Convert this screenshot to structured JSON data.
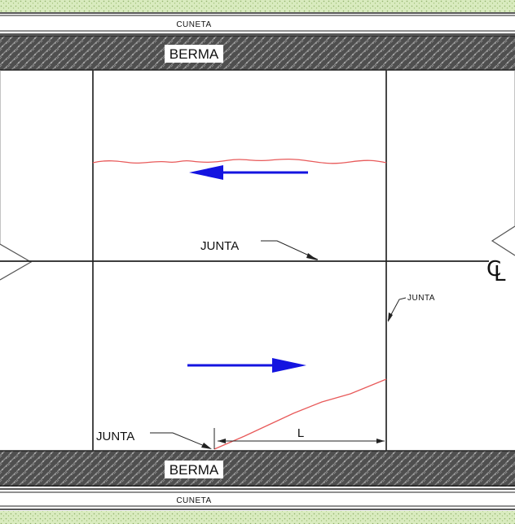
{
  "labels": {
    "cuneta_top": "Cuneta",
    "berma_top": "Berma",
    "junta_center": "Junta",
    "junta_right": "Junta",
    "junta_bottom": "Junta",
    "length": "L",
    "berma_bottom": "Berma",
    "cuneta_bottom": "Cuneta",
    "centerline_c": "C",
    "centerline_l": "L"
  },
  "colors": {
    "arrow": "#1414e0",
    "crack": "#e85a5a",
    "line": "#222222",
    "berma_fill": "#5a5a5a",
    "verge": "#cfe3b0"
  }
}
